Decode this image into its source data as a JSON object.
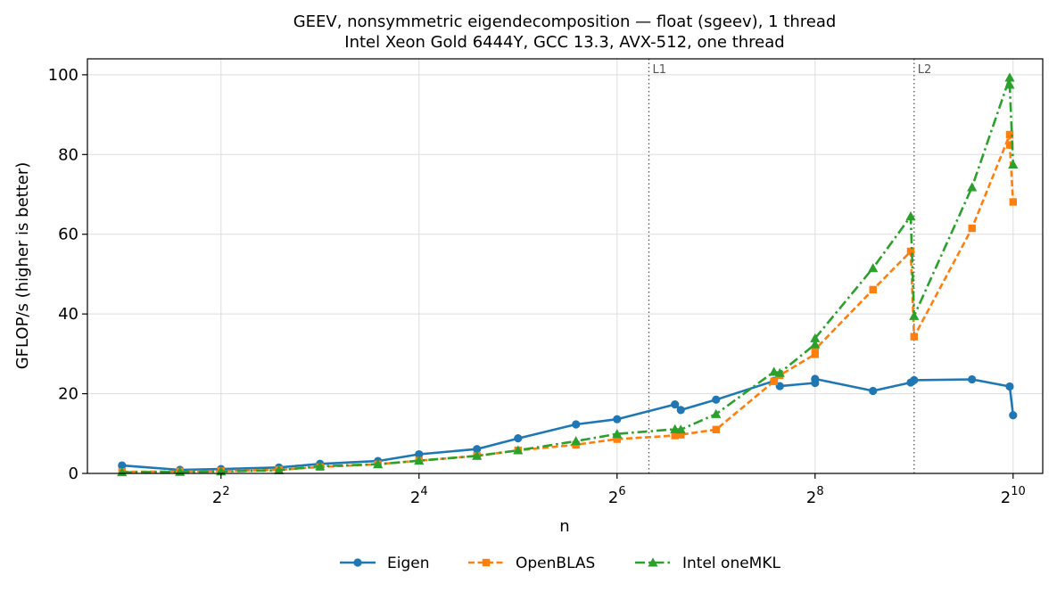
{
  "chart_data": {
    "type": "line",
    "title": "GEEV, nonsymmetric eigendecomposition — float (sgeev), 1 thread",
    "subtitle": "Intel Xeon Gold 6444Y, GCC 13.3, AVX-512, one thread",
    "xlabel": "n",
    "ylabel": "GFLOP/s (higher is better)",
    "xscale": "log2",
    "xlim": [
      1.57,
      1260
    ],
    "ylim": [
      0,
      104
    ],
    "xticks": [
      {
        "value": 4,
        "base": "2",
        "exp": "2"
      },
      {
        "value": 16,
        "base": "2",
        "exp": "4"
      },
      {
        "value": 64,
        "base": "2",
        "exp": "6"
      },
      {
        "value": 256,
        "base": "2",
        "exp": "8"
      },
      {
        "value": 1024,
        "base": "2",
        "exp": "10"
      }
    ],
    "yticks": [
      0,
      20,
      40,
      60,
      80,
      100
    ],
    "grid": true,
    "legend_position": "bottom-center",
    "vlines": [
      {
        "x": 80,
        "label": "L1"
      },
      {
        "x": 512,
        "label": "L2"
      }
    ],
    "series": [
      {
        "name": "Eigen",
        "color": "#1f77b4",
        "dash": "solid",
        "marker": "circle",
        "x": [
          2,
          3,
          4,
          6,
          8,
          12,
          16,
          24,
          32,
          48,
          64,
          96,
          100,
          128,
          192,
          200,
          256,
          256,
          384,
          500,
          512,
          768,
          1000,
          1024
        ],
        "y": [
          2.0,
          0.9,
          1.1,
          1.5,
          2.4,
          3.1,
          4.8,
          6.1,
          8.8,
          12.3,
          13.6,
          17.3,
          15.9,
          18.5,
          23.2,
          21.9,
          22.7,
          23.7,
          20.7,
          22.8,
          23.4,
          23.6,
          21.8,
          14.6
        ]
      },
      {
        "name": "OpenBLAS",
        "color": "#ff7f0e",
        "dash": "dashed",
        "marker": "square",
        "x": [
          2,
          3,
          4,
          6,
          8,
          12,
          16,
          24,
          32,
          48,
          64,
          96,
          100,
          128,
          192,
          200,
          256,
          256,
          384,
          500,
          512,
          768,
          1000,
          1000,
          1024
        ],
        "y": [
          0.4,
          0.5,
          0.6,
          0.9,
          1.6,
          2.3,
          3.2,
          4.4,
          5.8,
          7.2,
          8.6,
          9.5,
          9.7,
          11.0,
          23.1,
          24.6,
          29.9,
          31.1,
          46.1,
          55.7,
          34.3,
          61.5,
          85.0,
          82.4,
          68.1
        ]
      },
      {
        "name": "Intel oneMKL",
        "color": "#2ca02c",
        "dash": "dashdot",
        "marker": "triangle",
        "x": [
          2,
          3,
          4,
          6,
          8,
          12,
          16,
          24,
          32,
          48,
          64,
          96,
          100,
          128,
          192,
          200,
          256,
          256,
          384,
          500,
          512,
          768,
          1000,
          1000,
          1024
        ],
        "y": [
          0.3,
          0.4,
          0.5,
          0.8,
          1.8,
          2.3,
          3.2,
          4.4,
          5.8,
          8.1,
          9.9,
          11.1,
          11.0,
          14.9,
          25.5,
          25.2,
          32.4,
          33.9,
          51.5,
          64.5,
          39.5,
          71.8,
          99.3,
          97.5,
          77.5
        ]
      }
    ]
  }
}
